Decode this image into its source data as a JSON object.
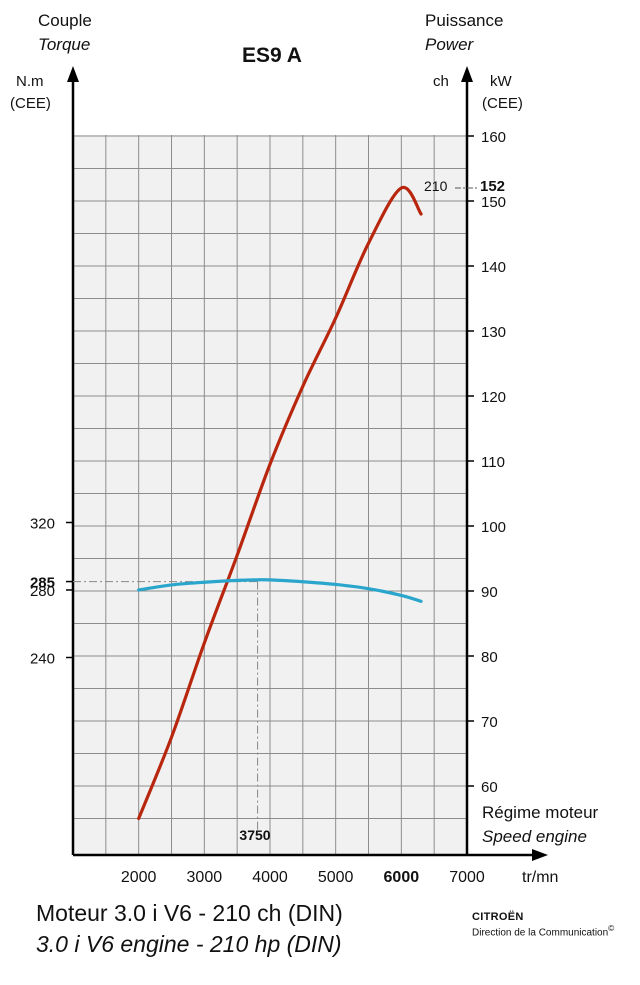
{
  "header": {
    "left_title": "Couple",
    "left_subtitle": "Torque",
    "left_unit": "N.m",
    "left_unit2": "(CEE)",
    "title": "ES9 A",
    "right_title": "Puissance",
    "right_subtitle": "Power",
    "right_unit_ch": "ch",
    "right_unit_kw": "kW",
    "right_unit2": "(CEE)"
  },
  "footer": {
    "title": "Moteur 3.0 i V6 - 210 ch (DIN)",
    "subtitle": "3.0 i V6 engine - 210 hp (DIN)",
    "brand": "CITROËN",
    "brand_sub": "Direction de la Communication",
    "copyright": "©"
  },
  "chart_data": {
    "type": "line",
    "title": "ES9 A",
    "xlabel": "tr/mn",
    "xlabel_fr": "Régime moteur",
    "xlabel_en": "Speed engine",
    "xlim": [
      1000,
      7000
    ],
    "x_ticks": [
      "2000",
      "3000",
      "4000",
      "5000",
      "6000",
      "7000"
    ],
    "x_ticks_bold": [
      "6000"
    ],
    "y_left_ticks": [
      "240",
      "280",
      "285",
      "320"
    ],
    "y_left_ticks_bold": [
      "285"
    ],
    "y_right_ticks": [
      "60",
      "70",
      "80",
      "90",
      "100",
      "110",
      "120",
      "130",
      "140",
      "150",
      "160"
    ],
    "y_right_range": [
      55,
      160
    ],
    "grid": true,
    "annotations": {
      "peak_power_ch": "210",
      "peak_power_kw": "152",
      "peak_torque_rpm": "3750"
    },
    "series": [
      {
        "name": "Puissance",
        "axis": "right_kW",
        "color": "#b8260e",
        "x": [
          2000,
          2500,
          3000,
          3500,
          4000,
          4500,
          5000,
          5500,
          6000,
          6300
        ],
        "y": [
          55,
          67.5,
          82,
          95.5,
          109.5,
          121.5,
          132,
          143.5,
          152,
          148
        ]
      },
      {
        "name": "Couple",
        "axis": "left_Nm",
        "color": "#2aa6cc",
        "x": [
          2000,
          2500,
          3000,
          3500,
          3800,
          4000,
          4500,
          5000,
          5500,
          6000,
          6300
        ],
        "y": [
          280,
          283,
          284.6,
          285.7,
          286,
          286,
          284.9,
          283.3,
          280.8,
          276.8,
          273.3
        ]
      }
    ]
  }
}
